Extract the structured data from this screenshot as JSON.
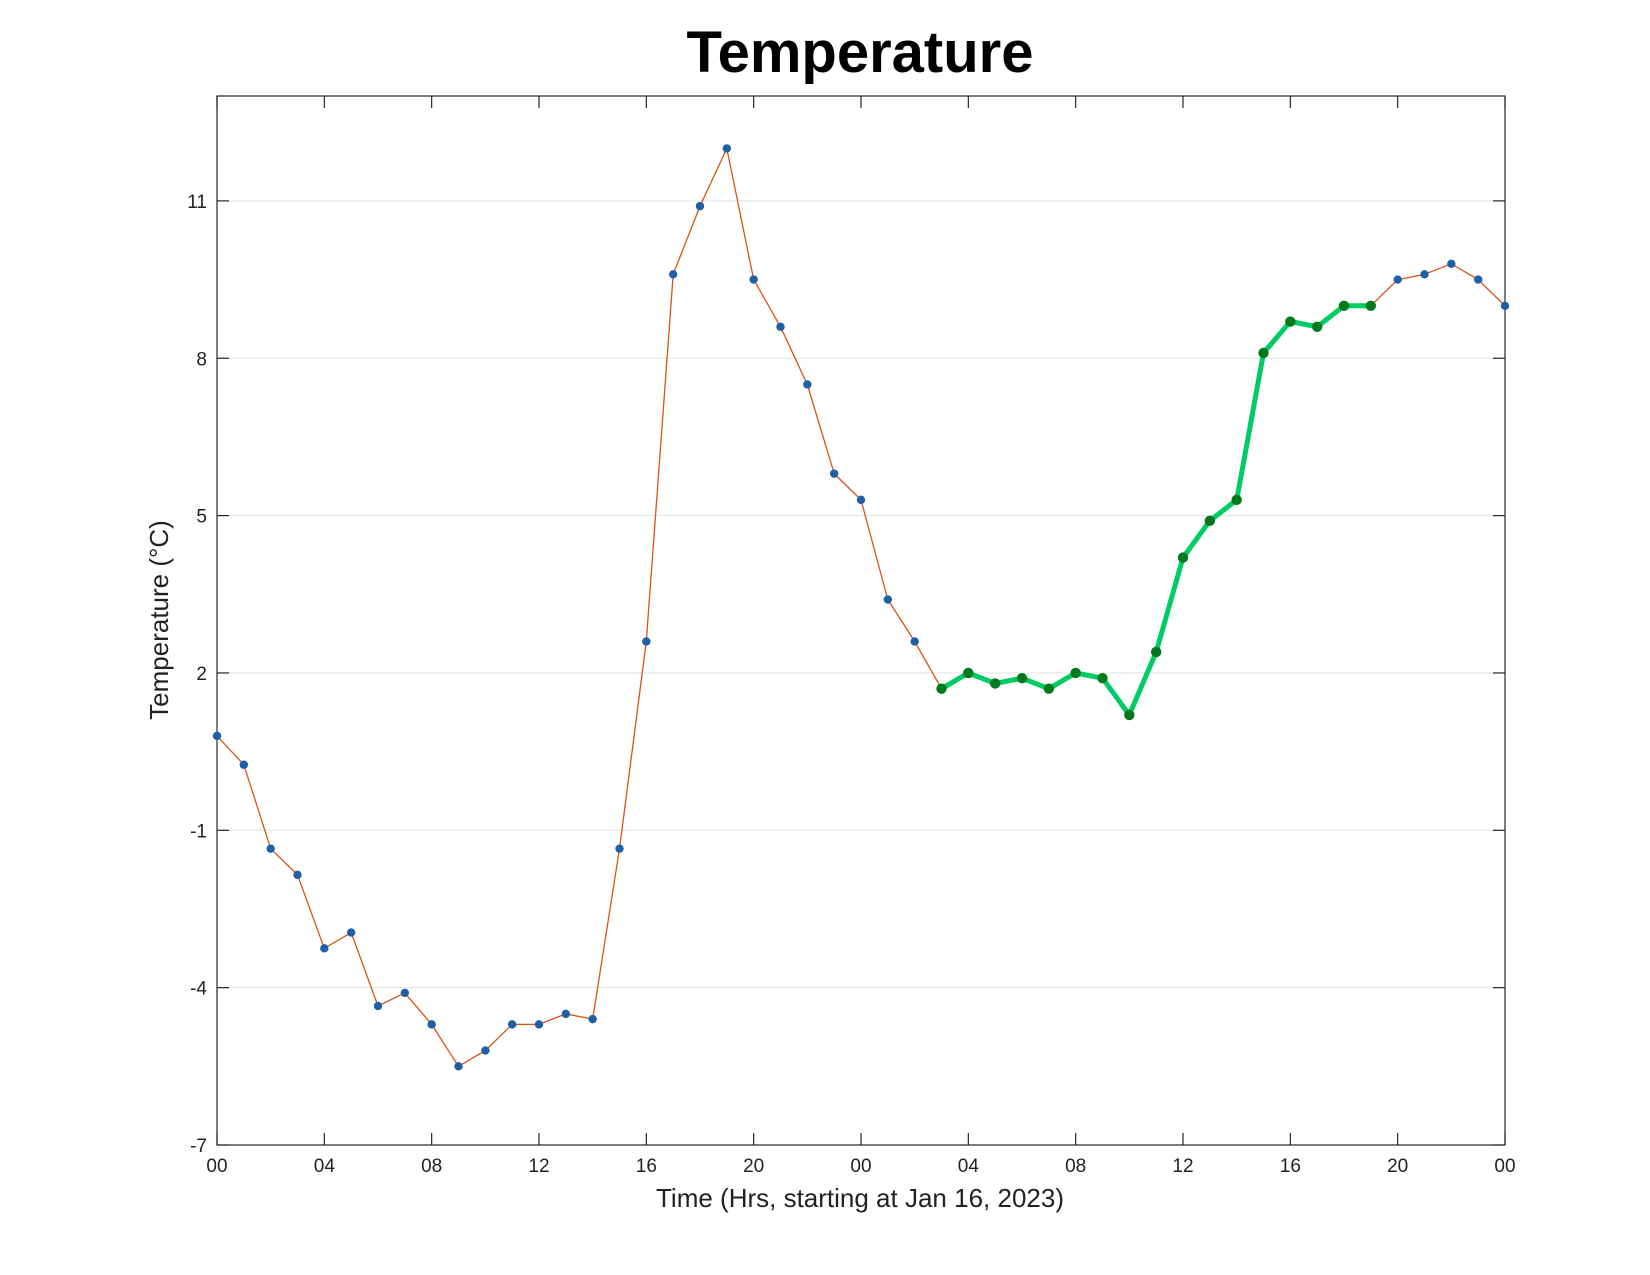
{
  "chart_data": {
    "type": "line",
    "title": "Temperature",
    "xlabel": "Time (Hrs, starting at Jan 16, 2023)",
    "ylabel": "Temperature (°C)",
    "x_unit": "hours",
    "xlim": [
      0,
      48
    ],
    "ylim": [
      -7,
      13
    ],
    "yticks": [
      -7,
      -4,
      -1,
      2,
      5,
      8,
      11
    ],
    "xticks": [
      {
        "x": 0,
        "label": "00"
      },
      {
        "x": 4,
        "label": "04"
      },
      {
        "x": 8,
        "label": "08"
      },
      {
        "x": 12,
        "label": "12"
      },
      {
        "x": 16,
        "label": "16"
      },
      {
        "x": 20,
        "label": "20"
      },
      {
        "x": 24,
        "label": "00"
      },
      {
        "x": 28,
        "label": "04"
      },
      {
        "x": 32,
        "label": "08"
      },
      {
        "x": 36,
        "label": "12"
      },
      {
        "x": 40,
        "label": "16"
      },
      {
        "x": 44,
        "label": "20"
      },
      {
        "x": 48,
        "label": "00"
      }
    ],
    "grid": "horizontal",
    "series": [
      {
        "x": [
          0,
          1,
          2,
          3,
          4,
          5,
          6,
          7,
          8,
          9,
          10,
          11,
          12,
          13,
          14,
          15,
          16,
          17,
          18,
          19,
          20,
          21,
          22,
          23,
          24,
          25,
          26,
          27,
          28,
          29,
          30,
          31,
          32,
          33,
          34,
          35,
          36,
          37,
          38,
          39,
          40,
          41,
          42,
          43,
          44,
          45,
          46,
          47,
          48
        ],
        "y": [
          0.8,
          0.25,
          -1.35,
          -1.85,
          -3.25,
          -2.95,
          -4.35,
          -4.1,
          -4.7,
          -5.5,
          -5.2,
          -4.7,
          -4.7,
          -4.5,
          -4.6,
          -1.35,
          2.6,
          9.6,
          10.9,
          12.0,
          9.5,
          8.6,
          7.5,
          5.8,
          5.3,
          3.4,
          2.6,
          1.7,
          2.0,
          1.8,
          1.9,
          1.7,
          2.0,
          1.9,
          1.2,
          2.4,
          4.2,
          4.9,
          5.3,
          8.1,
          8.7,
          8.6,
          9.0,
          9.0,
          9.5,
          9.6,
          9.8,
          9.5,
          9.0
        ],
        "color": "#d95319",
        "marker_color": "#1f5fa5"
      },
      {
        "x": [
          27,
          28,
          29,
          30,
          31,
          32,
          33,
          34,
          35,
          36,
          37,
          38,
          39,
          40,
          41,
          42,
          43
        ],
        "y": [
          1.7,
          2.0,
          1.8,
          1.9,
          1.7,
          2.0,
          1.9,
          1.2,
          2.4,
          4.2,
          4.9,
          5.3,
          8.1,
          8.7,
          8.6,
          9.0,
          9.0
        ],
        "color": "#00cc66",
        "marker_color": "#007a1c"
      }
    ]
  }
}
